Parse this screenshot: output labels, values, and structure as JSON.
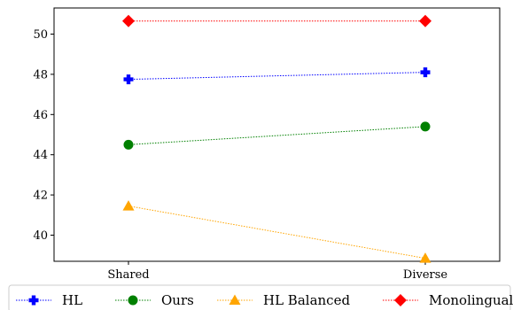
{
  "chart_data": {
    "type": "line",
    "title": "",
    "xlabel": "",
    "ylabel": "",
    "categories": [
      "Shared",
      "Diverse"
    ],
    "ylim": [
      38.7,
      51.3
    ],
    "yticks": [
      40,
      42,
      44,
      46,
      48,
      50
    ],
    "grid": false,
    "legend_position": "bottom",
    "series": [
      {
        "name": "HL",
        "values": [
          47.75,
          48.1
        ],
        "color": "#0000ff",
        "marker": "plus"
      },
      {
        "name": "Ours",
        "values": [
          44.5,
          45.4
        ],
        "color": "#008000",
        "marker": "circle"
      },
      {
        "name": "HL Balanced",
        "values": [
          41.45,
          38.85
        ],
        "color": "#ffa500",
        "marker": "triangle"
      },
      {
        "name": "Monolingual",
        "values": [
          50.65,
          50.65
        ],
        "color": "#ff0000",
        "marker": "diamond"
      }
    ]
  }
}
